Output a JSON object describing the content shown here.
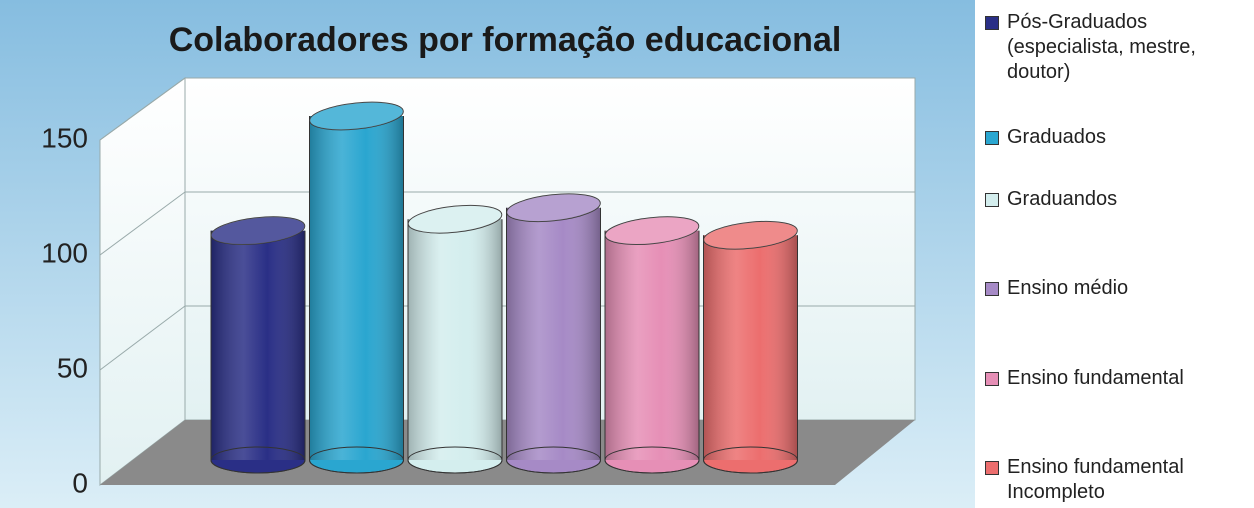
{
  "chart_data": {
    "type": "bar",
    "title": "Colaboradores por formação educacional",
    "categories": [
      "Pós-Graduados (especialista, mestre, doutor)",
      "Graduados",
      "Graduandos",
      "Ensino médio",
      "Ensino fundamental",
      "Ensino fundamental Incompleto"
    ],
    "values": [
      100,
      150,
      105,
      110,
      100,
      98
    ],
    "colors": [
      "#2a2f86",
      "#2aa6d0",
      "#d4eeee",
      "#a68ac6",
      "#e68fb6",
      "#ec6e6e"
    ],
    "ylim": [
      0,
      150
    ],
    "yticks": [
      0,
      50,
      100,
      150
    ],
    "grid": true,
    "legend": "right"
  }
}
